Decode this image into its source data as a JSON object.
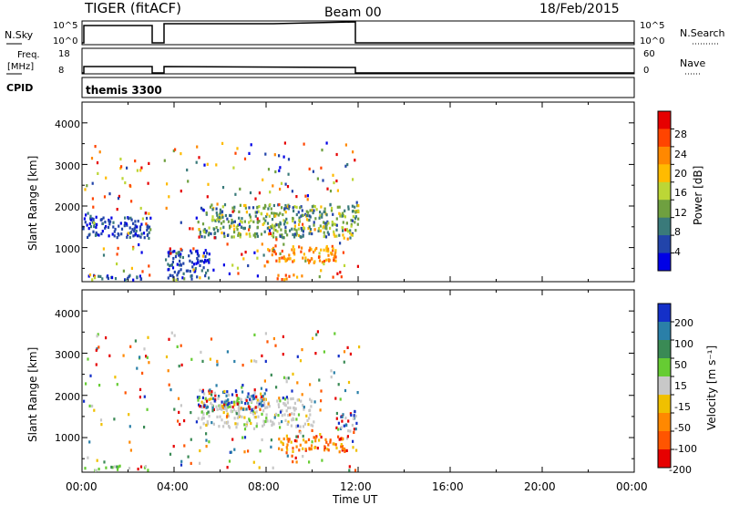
{
  "header": {
    "title": "TIGER (fitACF)",
    "beam": "Beam 00",
    "date": "18/Feb/2015"
  },
  "strips": {
    "nsky_label": "N.Sky",
    "nsky_ticks": [
      "10^5",
      "10^0"
    ],
    "nsearch_label": "N.Search",
    "nsearch_ticks": [
      "10^5",
      "10^0"
    ],
    "freq_label_1": "Freq.",
    "freq_label_2": "[MHz]",
    "freq_ticks": [
      "18",
      "8"
    ],
    "nave_label": "Nave",
    "nave_ticks": [
      "60",
      "0"
    ],
    "cpid_label": "CPID",
    "cpid_value": "themis 3300"
  },
  "axes": {
    "ylabel": "Slant Range [km]",
    "yticks": [
      "4000",
      "3000",
      "2000",
      "1000"
    ],
    "xticks": [
      "00:00",
      "04:00",
      "08:00",
      "12:00",
      "16:00",
      "20:00",
      "00:00"
    ],
    "xlabel": "Time UT"
  },
  "colorbars": {
    "power": {
      "label": "Power [dB]",
      "ticks": [
        "28",
        "24",
        "20",
        "16",
        "12",
        "8",
        "4"
      ],
      "colors": [
        "#e60000",
        "#ff4400",
        "#ff8800",
        "#ffbb00",
        "#bcd636",
        "#6fa040",
        "#3a7a7a",
        "#2244aa",
        "#0000e6"
      ]
    },
    "velocity": {
      "label": "Velocity [m s⁻¹]",
      "ticks": [
        "200",
        "100",
        "50",
        "15",
        "-15",
        "-50",
        "-100",
        "-200"
      ],
      "colors": [
        "#1430c8",
        "#2a7fa8",
        "#3a8a55",
        "#66cc33",
        "#c8c8c8",
        "#f0c000",
        "#ff8800",
        "#ff5500",
        "#e60000"
      ]
    }
  },
  "chart_data": [
    {
      "type": "heatmap",
      "name": "power",
      "x_range_hours": [
        0,
        24
      ],
      "ylim": [
        180,
        4500
      ],
      "data_extent_hours": [
        0,
        12
      ],
      "gap_hours": [
        2.95,
        3.55
      ],
      "clusters": [
        {
          "t": [
            5.0,
            12.0
          ],
          "r": [
            1200,
            2000
          ],
          "level": "mid"
        },
        {
          "t": [
            8.0,
            11.0
          ],
          "r": [
            600,
            1000
          ],
          "level": "high"
        },
        {
          "t": [
            0.0,
            2.9
          ],
          "r": [
            180,
            300
          ],
          "level": "low"
        },
        {
          "t": [
            0.0,
            2.9
          ],
          "r": [
            1200,
            1700
          ],
          "level": "low"
        },
        {
          "t": [
            3.6,
            5.5
          ],
          "r": [
            200,
            900
          ],
          "level": "low"
        },
        {
          "t": [
            8.3,
            9.3
          ],
          "r": [
            180,
            300
          ],
          "level": "high"
        }
      ]
    },
    {
      "type": "heatmap",
      "name": "velocity",
      "x_range_hours": [
        0,
        24
      ],
      "ylim": [
        180,
        4500
      ],
      "data_extent_hours": [
        0,
        12
      ],
      "gap_hours": [
        2.95,
        3.55
      ],
      "clusters": [
        {
          "t": [
            5.0,
            10.0
          ],
          "r": [
            1200,
            1900
          ],
          "level": "near-zero"
        },
        {
          "t": [
            8.5,
            11.5
          ],
          "r": [
            600,
            1000
          ],
          "level": "negative"
        },
        {
          "t": [
            5.0,
            8.0
          ],
          "r": [
            1600,
            2100
          ],
          "level": "mixed"
        },
        {
          "t": [
            0.0,
            2.9
          ],
          "r": [
            180,
            300
          ],
          "level": "positive-small"
        },
        {
          "t": [
            11.0,
            12.0
          ],
          "r": [
            1100,
            1600
          ],
          "level": "mixed"
        }
      ]
    }
  ]
}
